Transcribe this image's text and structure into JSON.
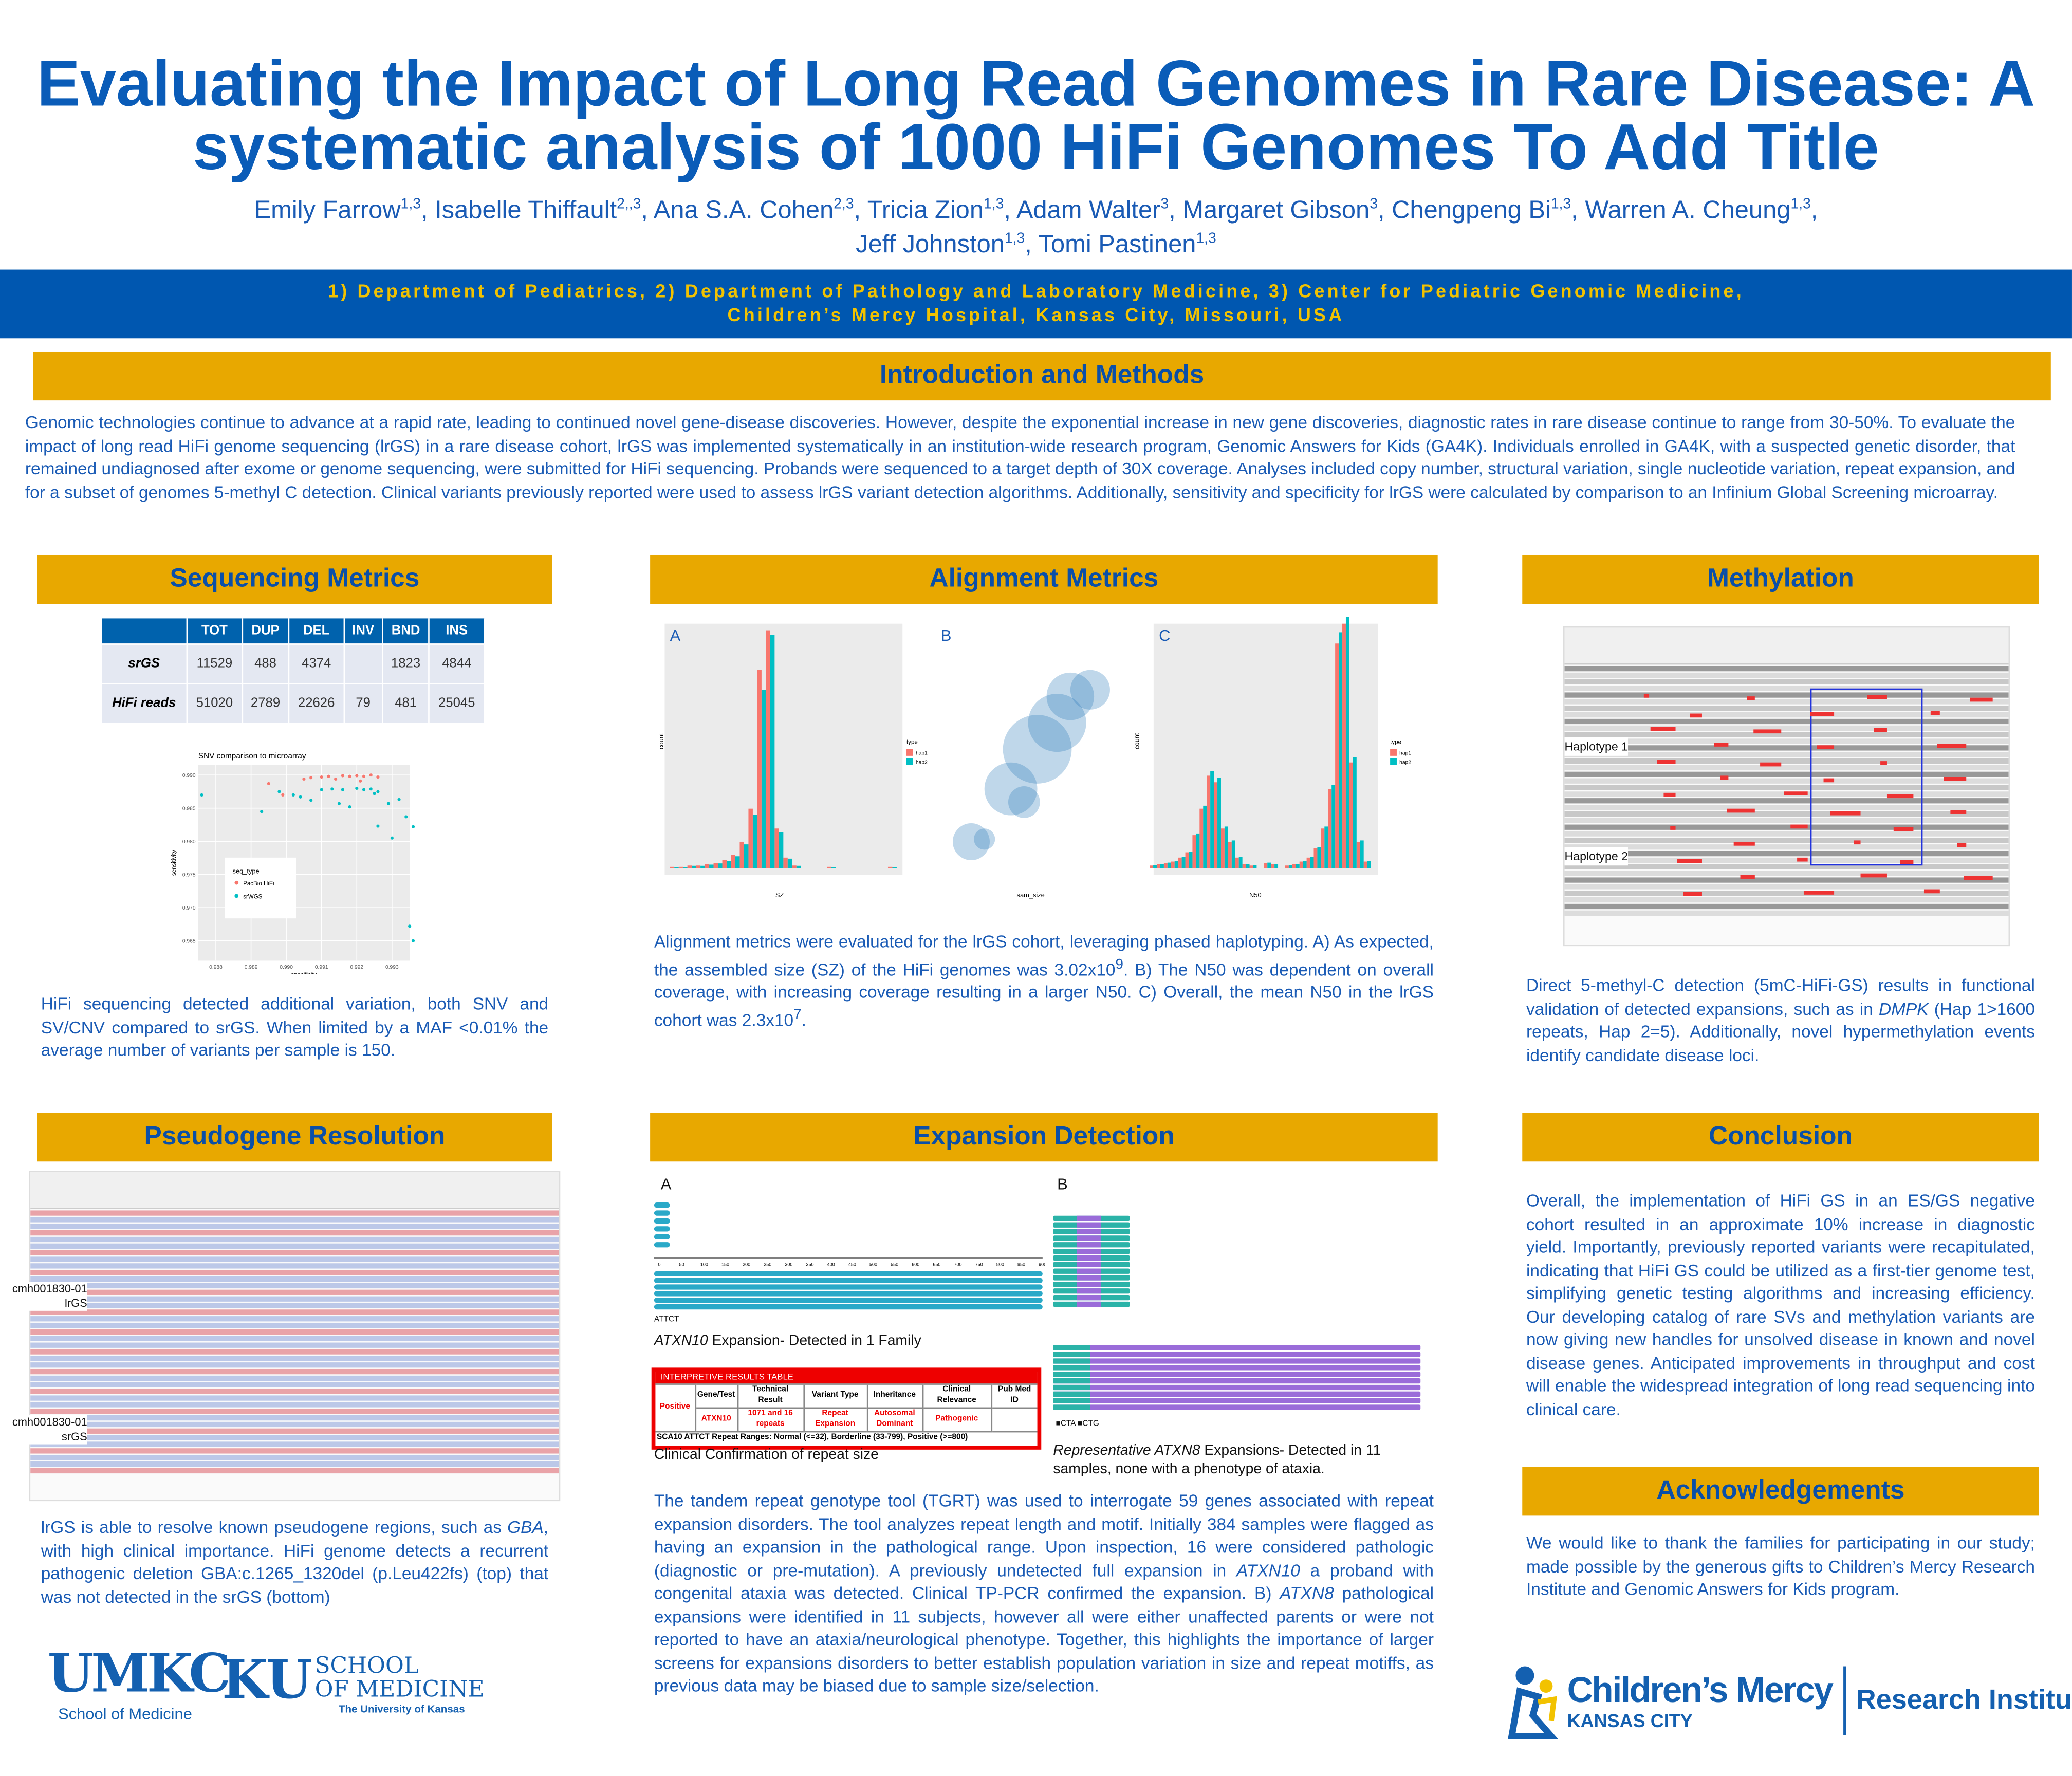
{
  "title": {
    "line1": "Evaluating the Impact of Long Read Genomes in Rare Disease: A",
    "line2": "systematic analysis of 1000 HiFi Genomes To Add Title"
  },
  "authors": {
    "line1": [
      {
        "n": "Emily Farrow",
        "s": "1,3"
      },
      {
        "n": "Isabelle Thiffault",
        "s": "2,,3"
      },
      {
        "n": "Ana S.A. Cohen",
        "s": "2,3"
      },
      {
        "n": "Tricia Zion",
        "s": "1,3"
      },
      {
        "n": "Adam Walter",
        "s": "3"
      },
      {
        "n": "Margaret Gibson",
        "s": "3"
      },
      {
        "n": "Chengpeng Bi",
        "s": "1,3"
      },
      {
        "n": "Warren A. Cheung",
        "s": "1,3"
      }
    ],
    "line2": [
      {
        "n": "Jeff Johnston",
        "s": "1,3"
      },
      {
        "n": "Tomi Pastinen",
        "s": "1,3"
      }
    ]
  },
  "affiliations": {
    "line1": "1) Department of Pediatrics, 2) Department of Pathology and Laboratory Medicine, 3) Center for Pediatric Genomic Medicine,",
    "line2": "Children’s Mercy Hospital, Kansas City, Missouri, USA"
  },
  "intro": {
    "header": "Introduction and Methods",
    "text": "Genomic technologies continue to advance at a rapid rate, leading to continued novel gene-disease discoveries. However, despite the exponential increase in new gene discoveries, diagnostic rates in rare disease continue to range from 30-50%. To evaluate the impact of long read HiFi genome sequencing (lrGS) in a rare disease cohort, lrGS was implemented systematically in an institution-wide research program, Genomic Answers for Kids (GA4K). Individuals enrolled in GA4K, with a suspected genetic disorder, that remained undiagnosed after exome or genome sequencing, were submitted for HiFi sequencing. Probands were sequenced to a target depth of 30X coverage. Analyses included copy number, structural variation, single nucleotide variation, repeat expansion, and for a subset of genomes 5-methyl C detection. Clinical variants previously reported were used to assess lrGS variant detection algorithms. Additionally, sensitivity and specificity for lrGS were calculated by comparison to an Infinium Global Screening microarray."
  },
  "sequencing": {
    "header": "Sequencing Metrics",
    "table": {
      "columns": [
        "",
        "TOT",
        "DUP",
        "DEL",
        "INV",
        "BND",
        "INS"
      ],
      "rows": [
        [
          "srGS",
          "11529",
          "488",
          "4374",
          "",
          "1823",
          "4844"
        ],
        [
          "HiFi reads",
          "51020",
          "2789",
          "22626",
          "79",
          "481",
          "25045"
        ]
      ]
    },
    "text": "HiFi sequencing detected additional variation, both SNV and SV/CNV compared to srGS. When limited by a MAF <0.01% the average number of variants per sample is 150."
  },
  "chart_data": {
    "type": "scatter",
    "title": "SNV comparison to microarray",
    "xlabel": "specificity",
    "ylabel": "sensitivity",
    "xlim": [
      0.9875,
      0.9935
    ],
    "ylim": [
      0.962,
      0.9915
    ],
    "yticks": [
      "0.990",
      "0.985",
      "0.980",
      "0.975",
      "0.970",
      "0.965"
    ],
    "xticks": [
      "0.988",
      "0.989",
      "0.990",
      "0.991",
      "0.992",
      "0.993"
    ],
    "legend": {
      "title": "seq_type",
      "position": "bottom-left"
    },
    "series": [
      {
        "name": "PacBio HiFi",
        "color": "#f8766d",
        "points": [
          [
            0.9895,
            0.9887
          ],
          [
            0.9905,
            0.9894
          ],
          [
            0.9907,
            0.9896
          ],
          [
            0.991,
            0.9897
          ],
          [
            0.9912,
            0.9898
          ],
          [
            0.9914,
            0.9894
          ],
          [
            0.9916,
            0.9899
          ],
          [
            0.9918,
            0.9898
          ],
          [
            0.992,
            0.9899
          ],
          [
            0.9922,
            0.9898
          ],
          [
            0.9924,
            0.99
          ],
          [
            0.9926,
            0.9897
          ],
          [
            0.9921,
            0.9891
          ],
          [
            0.9899,
            0.987
          ]
        ]
      },
      {
        "name": "srWGS",
        "color": "#00bfc4",
        "points": [
          [
            0.9876,
            0.987
          ],
          [
            0.9893,
            0.9845
          ],
          [
            0.9898,
            0.9875
          ],
          [
            0.9902,
            0.987
          ],
          [
            0.9904,
            0.9867
          ],
          [
            0.9907,
            0.9862
          ],
          [
            0.991,
            0.9878
          ],
          [
            0.9913,
            0.9879
          ],
          [
            0.9915,
            0.9857
          ],
          [
            0.9916,
            0.9878
          ],
          [
            0.9918,
            0.9852
          ],
          [
            0.992,
            0.988
          ],
          [
            0.9922,
            0.9878
          ],
          [
            0.9924,
            0.9879
          ],
          [
            0.9925,
            0.9872
          ],
          [
            0.9926,
            0.9875
          ],
          [
            0.9926,
            0.9823
          ],
          [
            0.9929,
            0.9857
          ],
          [
            0.993,
            0.9805
          ],
          [
            0.9932,
            0.9863
          ],
          [
            0.9934,
            0.9837
          ],
          [
            0.9936,
            0.9822
          ],
          [
            0.9935,
            0.9672
          ],
          [
            0.9936,
            0.965
          ]
        ]
      }
    ]
  },
  "alignment": {
    "header": "Alignment Metrics",
    "panels": [
      "A",
      "B",
      "C"
    ],
    "panel_a": {
      "xlabel": "SZ",
      "ylabel": "count",
      "legend_title": "type",
      "legend": [
        "hap1",
        "hap2"
      ]
    },
    "panel_b": {
      "xlabel": "sam_size"
    },
    "panel_c": {
      "xlabel": "N50",
      "ylabel": "count",
      "legend_title": "type",
      "legend": [
        "hap1",
        "hap2"
      ]
    },
    "text_html": "Alignment metrics were evaluated for the lrGS cohort, leveraging phased haplotyping. A) As expected, the assembled size (SZ) of the HiFi genomes was 3.02x10<sup>9</sup>. B) The N50 was dependent on overall coverage, with increasing coverage resulting in a larger N50. C) Overall, the mean N50 in the lrGS cohort was 2.3x10<sup>7</sup>."
  },
  "methylation": {
    "header": "Methylation",
    "hap1": "Haplotype 1",
    "hap2": "Haplotype 2",
    "text_html": "Direct 5-methyl-C detection (5mC-HiFi-GS) results in functional validation of detected expansions, such as in <i>DMPK</i> (Hap 1>1600 repeats, Hap 2=5). Additionally, novel hypermethylation events identify candidate disease loci."
  },
  "pseudogene": {
    "header": "Pseudogene Resolution",
    "track1": "cmh001830-01\nlrGS",
    "track2": "cmh001830-01\nsrGS",
    "text_html": "lrGS is able to resolve known pseudogene regions, such as <i>GBA</i>, with high clinical importance. HiFi genome detects a recurrent pathogenic deletion GBA:c.1265_1320del (p.Leu422fs) (top) that was not detected in the srGS (bottom)"
  },
  "expansion": {
    "header": "Expansion Detection",
    "panel_a": "A",
    "panel_b": "B",
    "caption_a_html": "<i>ATXN10</i> Expansion- Detected in 1 Family",
    "legend_a": "ATTCT",
    "legend_b": [
      "CTA",
      "CTG"
    ],
    "results_table": {
      "title": "INTERPRETIVE RESULTS TABLE",
      "columns": [
        "Gene/Test",
        "Technical Result",
        "Variant Type",
        "Inheritance",
        "Clinical Relevance",
        "Pub Med ID"
      ],
      "status": "Positive",
      "row": [
        "ATXN10",
        "1071 and 16 repeats",
        "Repeat Expansion",
        "Autosomal Dominant",
        "Pathogenic",
        ""
      ],
      "footer": "SCA10 ATTCT Repeat Ranges: Normal (<=32), Borderline (33-799), Positive (>=800)"
    },
    "caption_table": "Clinical Confirmation of repeat size",
    "caption_b_html": "<i>Representative ATXN8</i> Expansions- Detected in 11 samples, none with a phenotype of ataxia.",
    "text_html": "The tandem repeat genotype tool (TGRT) was used to interrogate 59 genes associated with repeat expansion disorders. The tool analyzes repeat length and motif. Initially 384 samples were flagged as having an expansion in the pathological range. Upon inspection, 16 were considered pathologic (diagnostic or pre-mutation). A previously undetected full expansion in <i>ATXN10</i> a proband with congenital ataxia was detected. Clinical TP-PCR confirmed the expansion. B) <i>ATXN8</i> pathological expansions were identified in 11 subjects, however all were either unaffected parents or were not reported to have an ataxia/neurological phenotype. Together, this highlights the importance of larger screens for expansions disorders to better establish population variation in size and repeat motiffs, as previous data may be biased due to sample size/selection."
  },
  "conclusion": {
    "header": "Conclusion",
    "text": "Overall, the implementation of HiFi GS in an ES/GS negative cohort resulted in an approximate 10% increase in diagnostic yield. Importantly, previously reported variants were recapitulated, indicating that HiFi GS could be utilized as a first-tier genome test, simplifying genetic testing algorithms and increasing efficiency. Our developing catalog of rare SVs and methylation variants are now giving new handles for unsolved disease in known and novel disease genes.  Anticipated improvements in throughput and cost will enable the widespread integration of long read sequencing into clinical care."
  },
  "acknowledgements": {
    "header": "Acknowledgements",
    "text": "We would like to thank the families for participating in our study; made possible by the generous gifts to Children’s Mercy Research Institute and Genomic Answers for Kids program."
  },
  "logos": {
    "umkc": "UMKC",
    "umkc_sub": "School of Medicine",
    "ku": "KU",
    "ku_school": "SCHOOL",
    "ku_med": "OF MEDICINE",
    "ku_sub": "The University of Kansas",
    "cm": "Children’s Mercy",
    "cm_sub": "KANSAS CITY",
    "cm_ri": "Research Institute"
  },
  "colors": {
    "title": "#0a5cb8",
    "band": "#0057b0",
    "band_text": "#f2c200",
    "header": "#e8a800",
    "hap1": "#f8766d",
    "hap2": "#00bfc4"
  }
}
